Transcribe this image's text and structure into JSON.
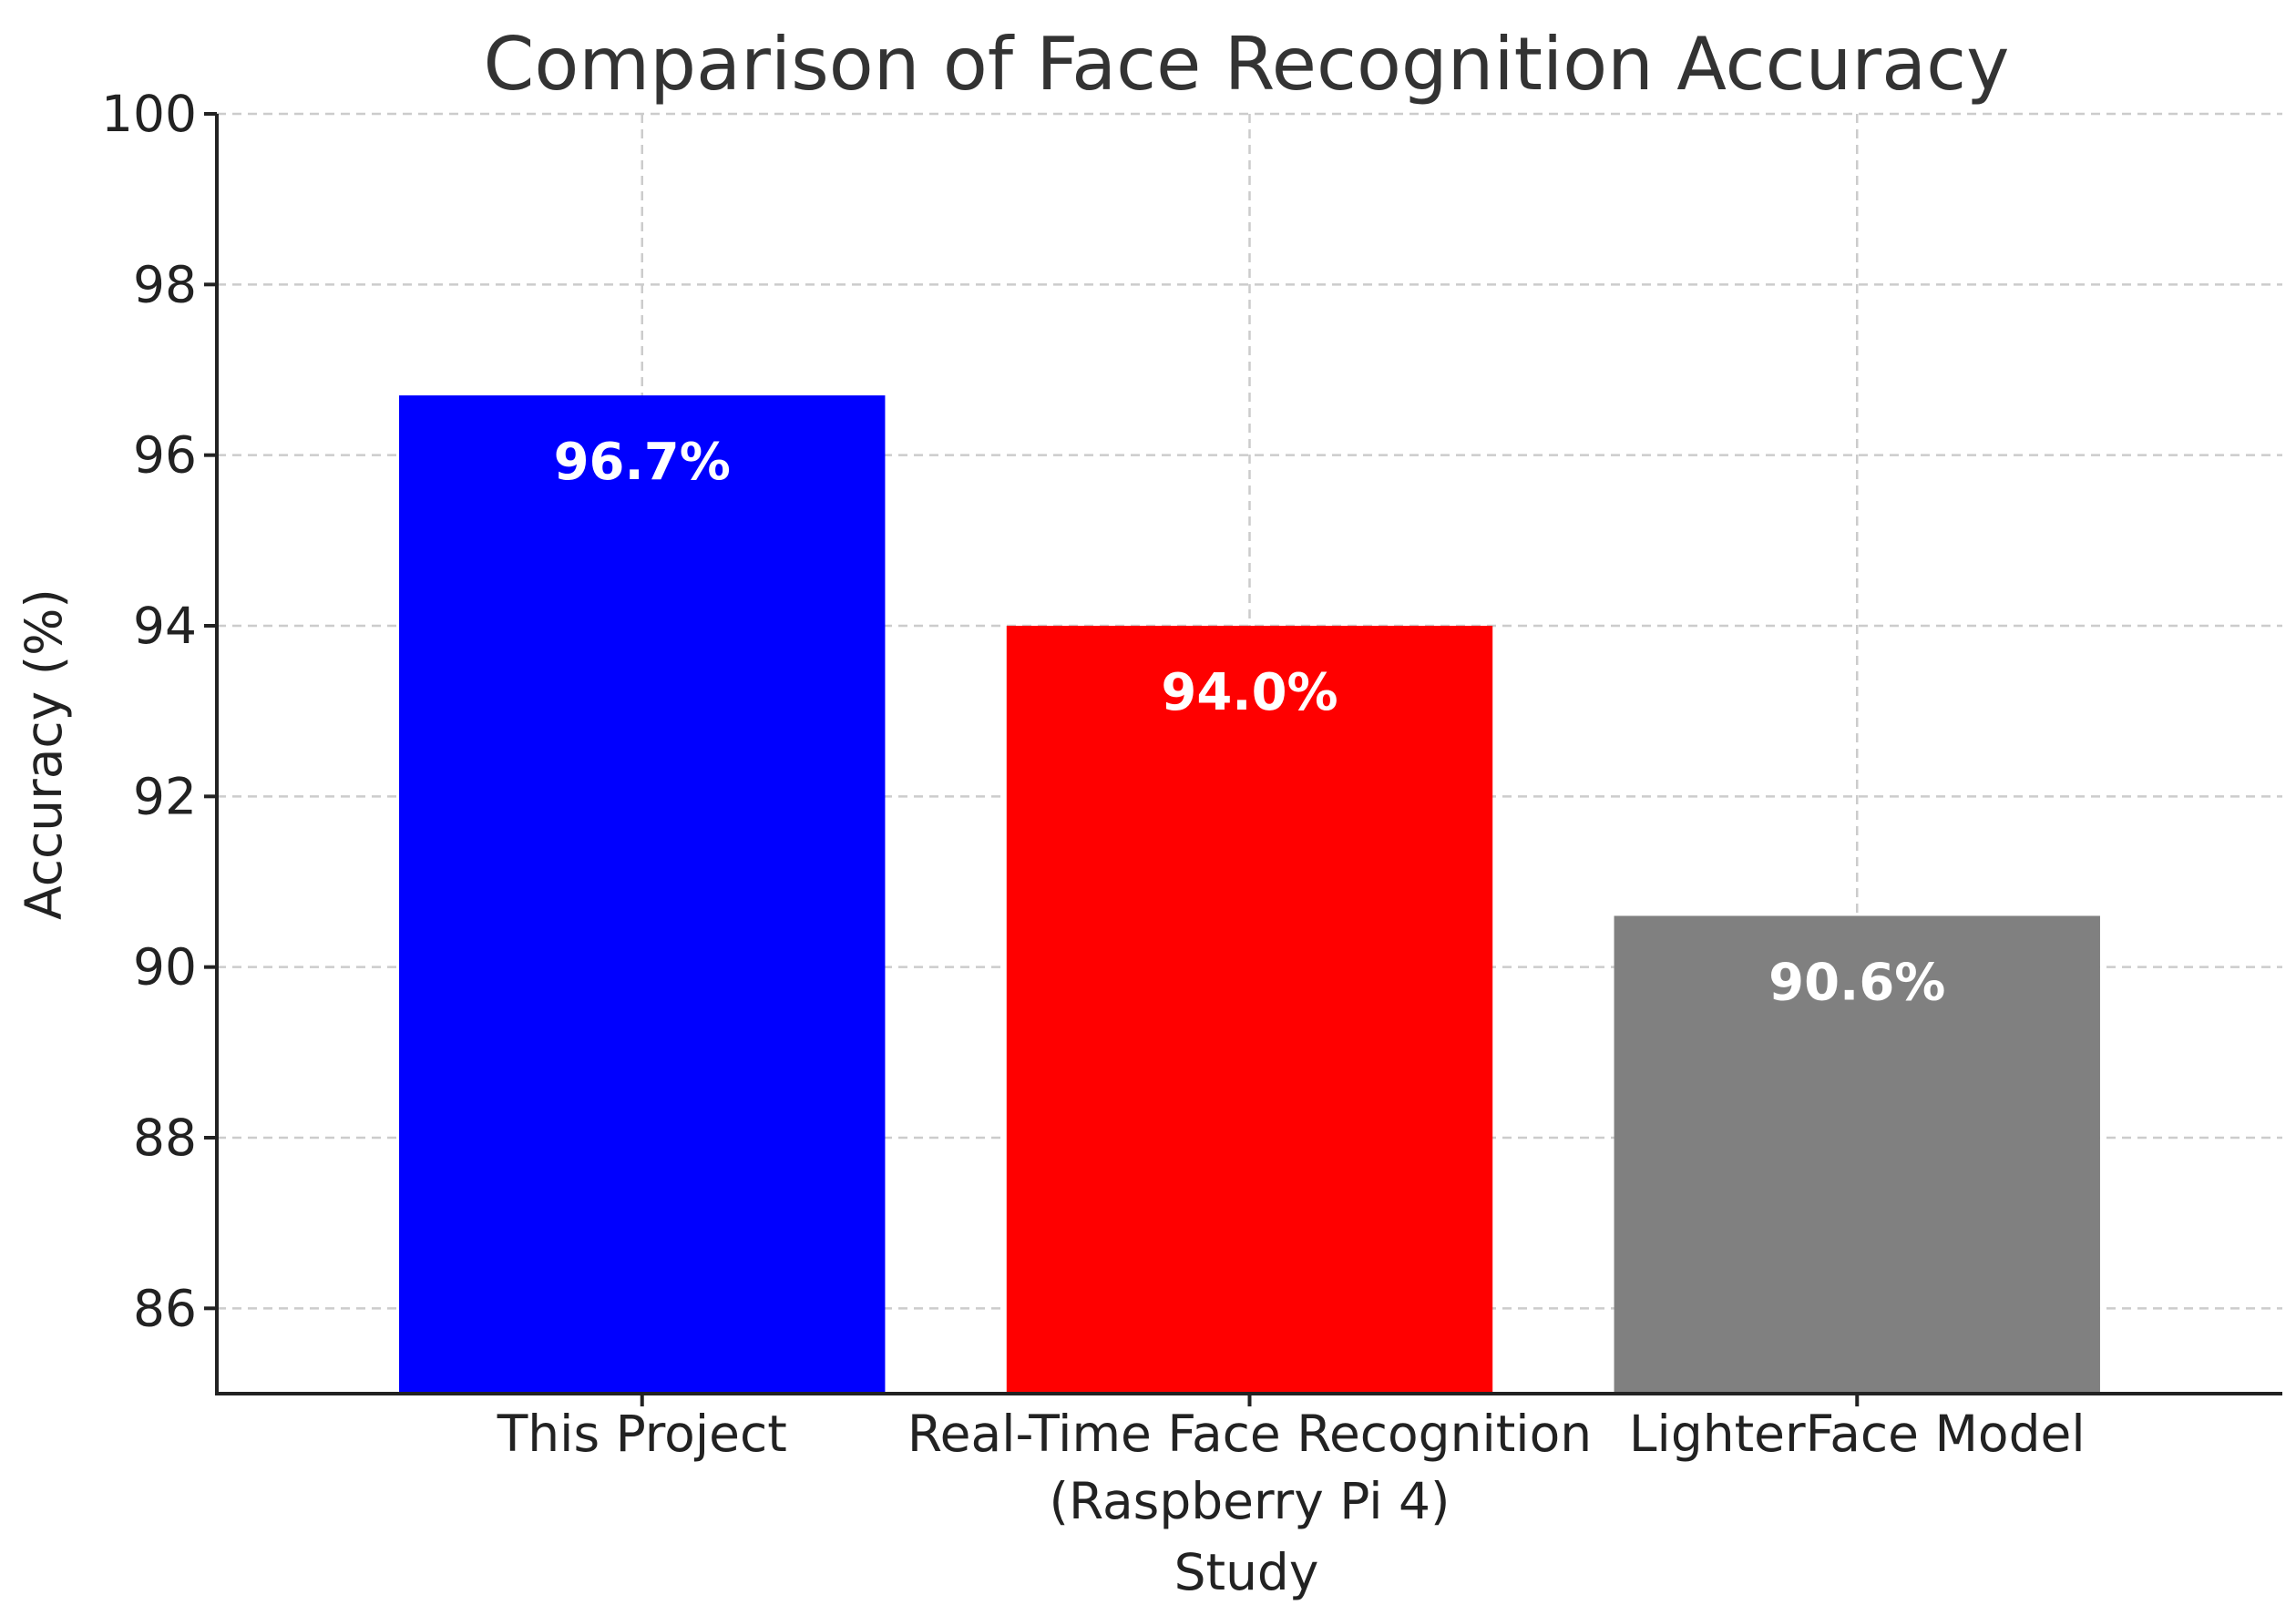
{
  "chart_data": {
    "type": "bar",
    "title": "Comparison of Face Recognition Accuracy",
    "xlabel": "Study",
    "ylabel": "Accuracy (%)",
    "categories": [
      [
        "This Project"
      ],
      [
        "Real-Time Face Recognition",
        "(Raspberry Pi 4)"
      ],
      [
        "LighterFace Model"
      ]
    ],
    "values": [
      96.7,
      94.0,
      90.6
    ],
    "value_labels": [
      "96.7%",
      "94.0%",
      "90.6%"
    ],
    "colors": [
      "#0000ff",
      "#ff0000",
      "#808080"
    ],
    "ylim": [
      85,
      100
    ],
    "yticks": [
      86,
      88,
      90,
      92,
      94,
      96,
      98,
      100
    ],
    "grid": true,
    "legend": "none"
  }
}
